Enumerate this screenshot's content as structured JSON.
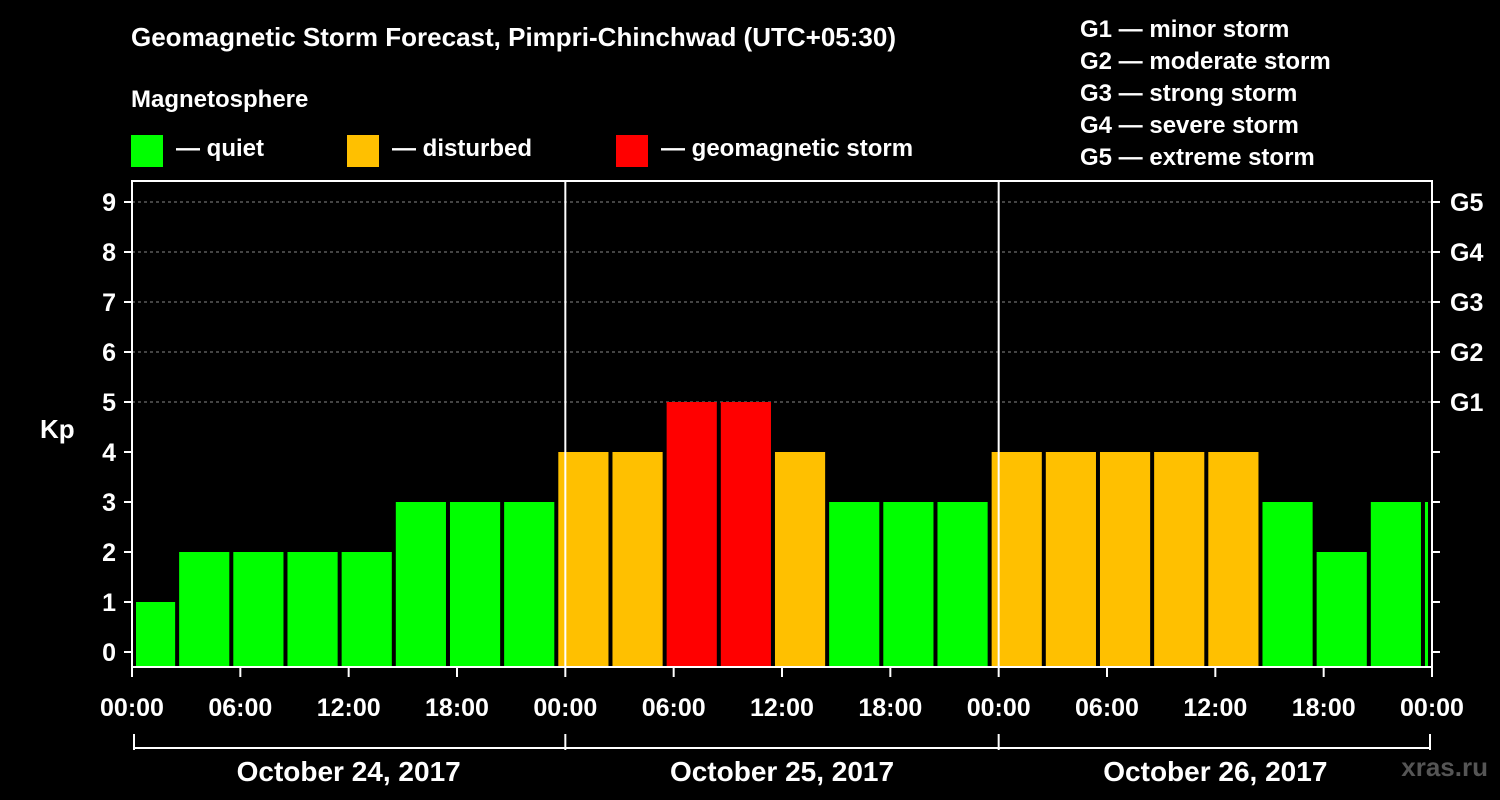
{
  "title": "Geomagnetic Storm Forecast, Pimpri-Chinchwad (UTC+05:30)",
  "legend": {
    "heading": "Magnetosphere",
    "items": [
      {
        "label": "— quiet",
        "color": "#00ff00"
      },
      {
        "label": "— disturbed",
        "color": "#ffc000"
      },
      {
        "label": "— geomagnetic storm",
        "color": "#ff0000"
      }
    ]
  },
  "g_scale_legend": [
    "G1 — minor storm",
    "G2 — moderate storm",
    "G3 — strong storm",
    "G4 — severe storm",
    "G5 — extreme storm"
  ],
  "watermark": "xras.ru",
  "chart_data": {
    "type": "bar",
    "ylabel": "Kp",
    "ylim": [
      0,
      9
    ],
    "yticks": [
      "0",
      "1",
      "2",
      "3",
      "4",
      "5",
      "6",
      "7",
      "8",
      "9"
    ],
    "right_labels": [
      {
        "label": "G1",
        "kp": 5
      },
      {
        "label": "G2",
        "kp": 6
      },
      {
        "label": "G3",
        "kp": 7
      },
      {
        "label": "G4",
        "kp": 8
      },
      {
        "label": "G5",
        "kp": 9
      }
    ],
    "xticks": [
      "00:00",
      "06:00",
      "12:00",
      "18:00",
      "00:00",
      "06:00",
      "12:00",
      "18:00",
      "00:00",
      "06:00",
      "12:00",
      "18:00",
      "00:00"
    ],
    "days": [
      "October 24, 2017",
      "October 25, 2017",
      "October 26, 2017"
    ],
    "x_start_hour": 0,
    "x_span_hours": 72,
    "bars": [
      {
        "start_hour": 0,
        "end_hour": 2.5,
        "kp": 1,
        "level": "quiet"
      },
      {
        "start_hour": 2.5,
        "end_hour": 5.5,
        "kp": 2,
        "level": "quiet"
      },
      {
        "start_hour": 5.5,
        "end_hour": 8.5,
        "kp": 2,
        "level": "quiet"
      },
      {
        "start_hour": 8.5,
        "end_hour": 11.5,
        "kp": 2,
        "level": "quiet"
      },
      {
        "start_hour": 11.5,
        "end_hour": 14.5,
        "kp": 2,
        "level": "quiet"
      },
      {
        "start_hour": 14.5,
        "end_hour": 17.5,
        "kp": 3,
        "level": "quiet"
      },
      {
        "start_hour": 17.5,
        "end_hour": 20.5,
        "kp": 3,
        "level": "quiet"
      },
      {
        "start_hour": 20.5,
        "end_hour": 23.5,
        "kp": 3,
        "level": "quiet"
      },
      {
        "start_hour": 23.5,
        "end_hour": 26.5,
        "kp": 4,
        "level": "disturbed"
      },
      {
        "start_hour": 26.5,
        "end_hour": 29.5,
        "kp": 4,
        "level": "disturbed"
      },
      {
        "start_hour": 29.5,
        "end_hour": 32.5,
        "kp": 5,
        "level": "storm"
      },
      {
        "start_hour": 32.5,
        "end_hour": 35.5,
        "kp": 5,
        "level": "storm"
      },
      {
        "start_hour": 35.5,
        "end_hour": 38.5,
        "kp": 4,
        "level": "disturbed"
      },
      {
        "start_hour": 38.5,
        "end_hour": 41.5,
        "kp": 3,
        "level": "quiet"
      },
      {
        "start_hour": 41.5,
        "end_hour": 44.5,
        "kp": 3,
        "level": "quiet"
      },
      {
        "start_hour": 44.5,
        "end_hour": 47.5,
        "kp": 3,
        "level": "quiet"
      },
      {
        "start_hour": 47.5,
        "end_hour": 50.5,
        "kp": 4,
        "level": "disturbed"
      },
      {
        "start_hour": 50.5,
        "end_hour": 53.5,
        "kp": 4,
        "level": "disturbed"
      },
      {
        "start_hour": 53.5,
        "end_hour": 56.5,
        "kp": 4,
        "level": "disturbed"
      },
      {
        "start_hour": 56.5,
        "end_hour": 59.5,
        "kp": 4,
        "level": "disturbed"
      },
      {
        "start_hour": 59.5,
        "end_hour": 62.5,
        "kp": 4,
        "level": "disturbed"
      },
      {
        "start_hour": 62.5,
        "end_hour": 65.5,
        "kp": 3,
        "level": "quiet"
      },
      {
        "start_hour": 65.5,
        "end_hour": 68.5,
        "kp": 2,
        "level": "quiet"
      },
      {
        "start_hour": 68.5,
        "end_hour": 71.5,
        "kp": 3,
        "level": "quiet"
      },
      {
        "start_hour": 71.5,
        "end_hour": 72,
        "kp": 3,
        "level": "quiet"
      }
    ],
    "level_colors": {
      "quiet": "#00ff00",
      "disturbed": "#ffc000",
      "storm": "#ff0000"
    }
  }
}
